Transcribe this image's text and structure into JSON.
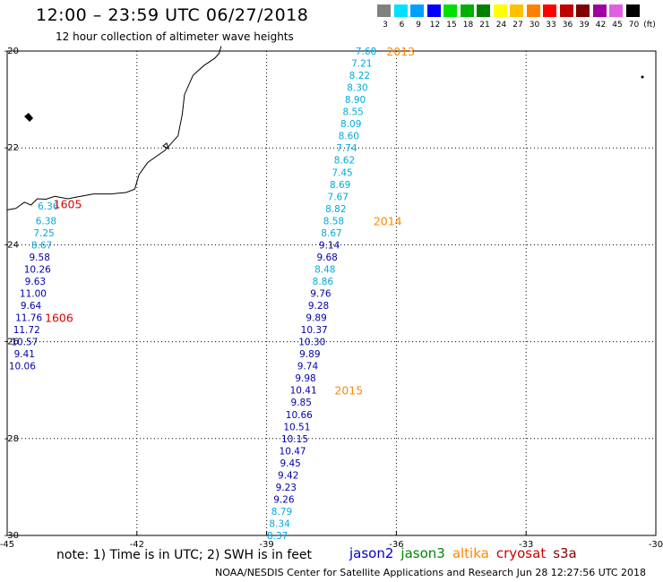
{
  "header": {
    "title": "12:00 – 23:59 UTC 06/27/2018",
    "subtitle": "12 hour collection of altimeter wave heights"
  },
  "color_scale": {
    "unit": "(ft)",
    "items": [
      {
        "label": "3",
        "color": "#808080"
      },
      {
        "label": "6",
        "color": "#00e0ff"
      },
      {
        "label": "9",
        "color": "#00a0ff"
      },
      {
        "label": "12",
        "color": "#0000ff"
      },
      {
        "label": "15",
        "color": "#00e000"
      },
      {
        "label": "18",
        "color": "#00b000"
      },
      {
        "label": "21",
        "color": "#008000"
      },
      {
        "label": "24",
        "color": "#ffff00"
      },
      {
        "label": "27",
        "color": "#ffc000"
      },
      {
        "label": "30",
        "color": "#ff8000"
      },
      {
        "label": "33",
        "color": "#ff0000"
      },
      {
        "label": "36",
        "color": "#c00000"
      },
      {
        "label": "39",
        "color": "#800000"
      },
      {
        "label": "42",
        "color": "#a000a0"
      },
      {
        "label": "45",
        "color": "#e060e0"
      },
      {
        "label": "70",
        "color": "#000000"
      }
    ]
  },
  "chart_data": {
    "type": "scatter",
    "title": "12:00 – 23:59 UTC 06/27/2018",
    "subtitle": "12 hour collection of altimeter wave heights",
    "xlim": [
      -45,
      -30
    ],
    "ylim": [
      -30,
      -20
    ],
    "x_ticks": [
      "-45",
      "-42",
      "-39",
      "-36",
      "-33",
      "-30"
    ],
    "y_ticks": [
      "-20",
      "-22",
      "-24",
      "-26",
      "-28",
      "-30"
    ],
    "grid": "dotted",
    "colors": {
      "light": "#00aadd",
      "dark": "#0000aa",
      "time": "#ff8800",
      "time_alt": "#dd0000"
    },
    "tracks": [
      {
        "name": "east-track",
        "points": [
          {
            "lon": -36.7,
            "lat": -20.0,
            "v": "7.68",
            "c": "light"
          },
          {
            "lon": -36.8,
            "lat": -20.25,
            "v": "7.21",
            "c": "light"
          },
          {
            "lon": -36.85,
            "lat": -20.5,
            "v": "8.22",
            "c": "light"
          },
          {
            "lon": -36.9,
            "lat": -20.75,
            "v": "8.30",
            "c": "light"
          },
          {
            "lon": -36.95,
            "lat": -21.0,
            "v": "8.90",
            "c": "light"
          },
          {
            "lon": -37.0,
            "lat": -21.25,
            "v": "8.55",
            "c": "light"
          },
          {
            "lon": -37.05,
            "lat": -21.5,
            "v": "8.09",
            "c": "light"
          },
          {
            "lon": -37.1,
            "lat": -21.75,
            "v": "8.60",
            "c": "light"
          },
          {
            "lon": -37.15,
            "lat": -22.0,
            "v": "7.74",
            "c": "light"
          },
          {
            "lon": -37.2,
            "lat": -22.25,
            "v": "8.62",
            "c": "light"
          },
          {
            "lon": -37.25,
            "lat": -22.5,
            "v": "7.45",
            "c": "light"
          },
          {
            "lon": -37.3,
            "lat": -22.75,
            "v": "8.69",
            "c": "light"
          },
          {
            "lon": -37.35,
            "lat": -23.0,
            "v": "7.67",
            "c": "light"
          },
          {
            "lon": -37.4,
            "lat": -23.25,
            "v": "8.82",
            "c": "light"
          },
          {
            "lon": -37.45,
            "lat": -23.5,
            "v": "8.58",
            "c": "light"
          },
          {
            "lon": -37.5,
            "lat": -23.75,
            "v": "8.67",
            "c": "light"
          },
          {
            "lon": -37.55,
            "lat": -24.0,
            "v": "9.14",
            "c": "dark"
          },
          {
            "lon": -37.6,
            "lat": -24.25,
            "v": "9.68",
            "c": "dark"
          },
          {
            "lon": -37.65,
            "lat": -24.5,
            "v": "8.48",
            "c": "light"
          },
          {
            "lon": -37.7,
            "lat": -24.75,
            "v": "8.86",
            "c": "light"
          },
          {
            "lon": -37.75,
            "lat": -25.0,
            "v": "9.76",
            "c": "dark"
          },
          {
            "lon": -37.8,
            "lat": -25.25,
            "v": "9.28",
            "c": "dark"
          },
          {
            "lon": -37.85,
            "lat": -25.5,
            "v": "9.89",
            "c": "dark"
          },
          {
            "lon": -37.9,
            "lat": -25.75,
            "v": "10.37",
            "c": "dark"
          },
          {
            "lon": -37.95,
            "lat": -26.0,
            "v": "10.30",
            "c": "dark"
          },
          {
            "lon": -38.0,
            "lat": -26.25,
            "v": "9.89",
            "c": "dark"
          },
          {
            "lon": -38.05,
            "lat": -26.5,
            "v": "9.74",
            "c": "dark"
          },
          {
            "lon": -38.1,
            "lat": -26.75,
            "v": "9.98",
            "c": "dark"
          },
          {
            "lon": -38.15,
            "lat": -27.0,
            "v": "10.41",
            "c": "dark"
          },
          {
            "lon": -38.2,
            "lat": -27.25,
            "v": "9.85",
            "c": "dark"
          },
          {
            "lon": -38.25,
            "lat": -27.5,
            "v": "10.66",
            "c": "dark"
          },
          {
            "lon": -38.3,
            "lat": -27.75,
            "v": "10.51",
            "c": "dark"
          },
          {
            "lon": -38.35,
            "lat": -28.0,
            "v": "10.15",
            "c": "dark"
          },
          {
            "lon": -38.4,
            "lat": -28.25,
            "v": "10.47",
            "c": "dark"
          },
          {
            "lon": -38.45,
            "lat": -28.5,
            "v": "9.45",
            "c": "dark"
          },
          {
            "lon": -38.5,
            "lat": -28.75,
            "v": "9.42",
            "c": "dark"
          },
          {
            "lon": -38.55,
            "lat": -29.0,
            "v": "9.23",
            "c": "dark"
          },
          {
            "lon": -38.6,
            "lat": -29.25,
            "v": "9.26",
            "c": "dark"
          },
          {
            "lon": -38.65,
            "lat": -29.5,
            "v": "8.79",
            "c": "light"
          },
          {
            "lon": -38.7,
            "lat": -29.75,
            "v": "8.34",
            "c": "light"
          },
          {
            "lon": -38.75,
            "lat": -30.0,
            "v": "8.37",
            "c": "light"
          }
        ]
      },
      {
        "name": "west-track",
        "points": [
          {
            "lon": -44.05,
            "lat": -23.2,
            "v": "6.36",
            "c": "light"
          },
          {
            "lon": -44.1,
            "lat": -23.5,
            "v": "6.38",
            "c": "light"
          },
          {
            "lon": -44.15,
            "lat": -23.75,
            "v": "7.25",
            "c": "light"
          },
          {
            "lon": -44.2,
            "lat": -24.0,
            "v": "8.67",
            "c": "light"
          },
          {
            "lon": -44.25,
            "lat": -24.25,
            "v": "9.58",
            "c": "dark"
          },
          {
            "lon": -44.3,
            "lat": -24.5,
            "v": "10.26",
            "c": "dark"
          },
          {
            "lon": -44.35,
            "lat": -24.75,
            "v": "9.63",
            "c": "dark"
          },
          {
            "lon": -44.4,
            "lat": -25.0,
            "v": "11.00",
            "c": "dark"
          },
          {
            "lon": -44.45,
            "lat": -25.25,
            "v": "9.64",
            "c": "dark"
          },
          {
            "lon": -44.5,
            "lat": -25.5,
            "v": "11.76",
            "c": "dark"
          },
          {
            "lon": -44.55,
            "lat": -25.75,
            "v": "11.72",
            "c": "dark"
          },
          {
            "lon": -44.6,
            "lat": -26.0,
            "v": "10.57",
            "c": "dark"
          },
          {
            "lon": -44.6,
            "lat": -26.25,
            "v": "9.41",
            "c": "dark"
          },
          {
            "lon": -44.65,
            "lat": -26.5,
            "v": "10.06",
            "c": "dark"
          }
        ]
      }
    ],
    "time_labels": [
      {
        "lon": -35.9,
        "lat": -20.0,
        "text": "2013",
        "c": "time"
      },
      {
        "lon": -36.2,
        "lat": -23.5,
        "text": "2014",
        "c": "time"
      },
      {
        "lon": -37.1,
        "lat": -27.0,
        "text": "2015",
        "c": "time"
      },
      {
        "lon": -43.6,
        "lat": -23.15,
        "text": "1605",
        "c": "time_alt"
      },
      {
        "lon": -43.8,
        "lat": -25.5,
        "text": "1606",
        "c": "time_alt"
      }
    ]
  },
  "note": "note: 1) Time is in UTC; 2) SWH is in feet",
  "satellites": [
    {
      "name": "jason2",
      "color": "#0000cc"
    },
    {
      "name": "jason3",
      "color": "#008800"
    },
    {
      "name": "altika",
      "color": "#ff8800"
    },
    {
      "name": "cryosat",
      "color": "#cc0000"
    },
    {
      "name": "s3a",
      "color": "#880000"
    }
  ],
  "footer": "NOAA/NESDIS Center for Satellite Applications and Research   Jun 28 12:27:56 UTC 2018"
}
